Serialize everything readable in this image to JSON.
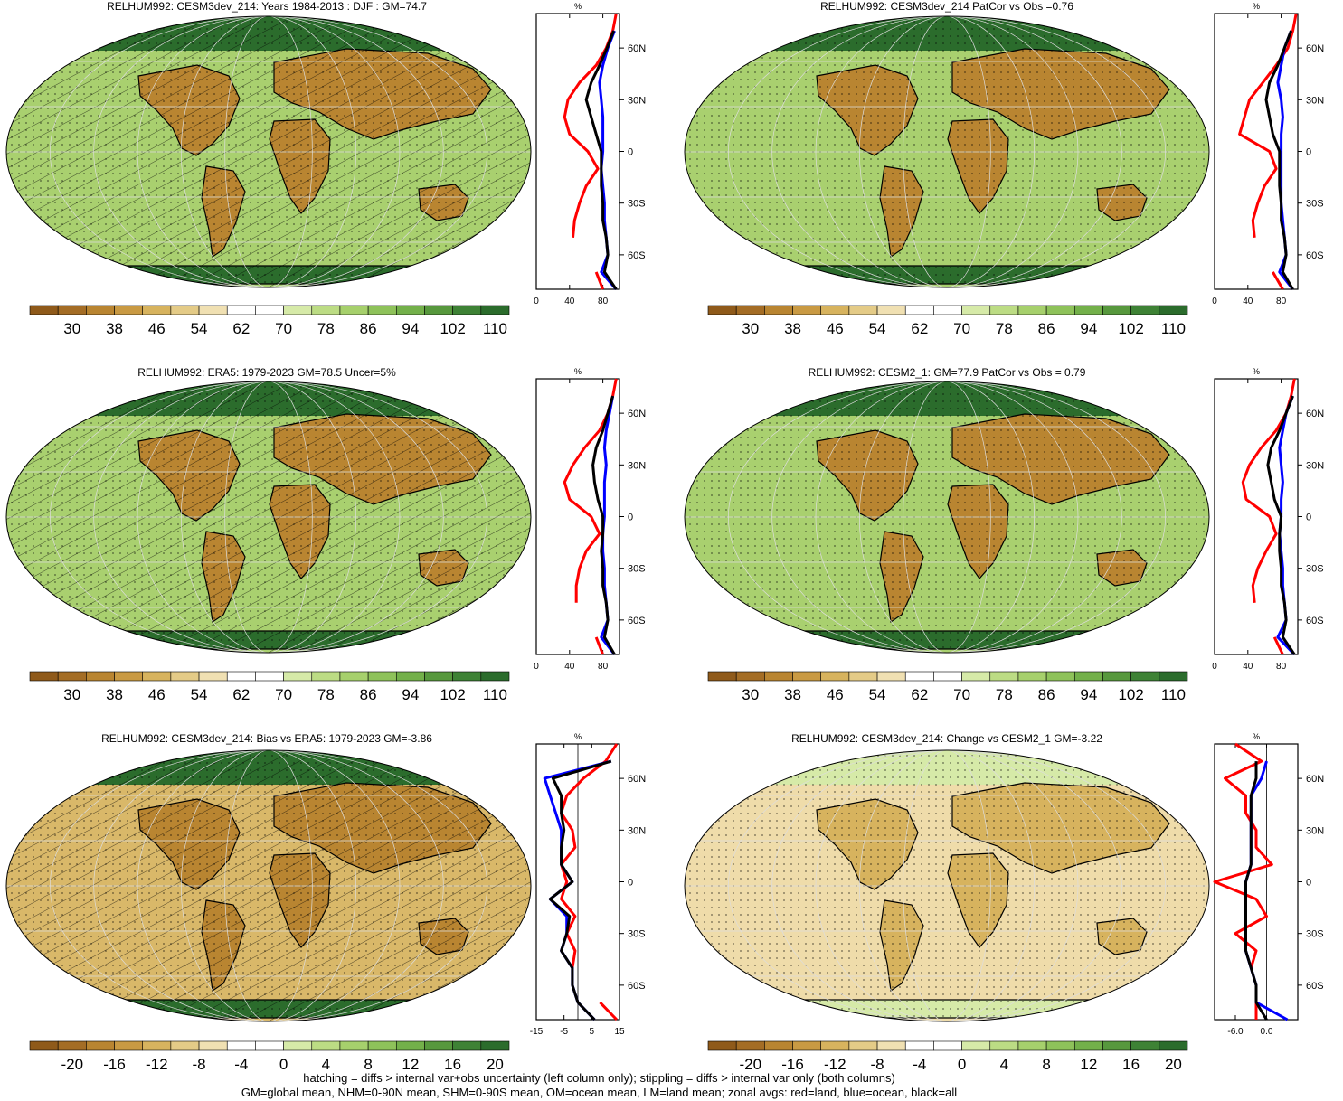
{
  "palette": {
    "abs": [
      "#8f5a1a",
      "#a46d25",
      "#b98531",
      "#c99a43",
      "#d7b35e",
      "#e4cb87",
      "#f0e0b2",
      "#ffffff",
      "#ffffff",
      "#d6eaa8",
      "#bcdc84",
      "#a6d06c",
      "#8ec25a",
      "#73b04a",
      "#57983d",
      "#3e8235",
      "#2b6c2c"
    ],
    "diff": [
      "#8f5a1a",
      "#a46d25",
      "#b98531",
      "#c99a43",
      "#d7b35e",
      "#e4cb87",
      "#f0e0b2",
      "#ffffff",
      "#ffffff",
      "#d6eaa8",
      "#bcdc84",
      "#a6d06c",
      "#8ec25a",
      "#73b04a",
      "#57983d",
      "#3e8235",
      "#2b6c2c"
    ],
    "land_line": "#ff0000",
    "ocean_line": "#0000ff",
    "all_line": "#000000",
    "missing": "#cccccc"
  },
  "chart_data": [
    {
      "type": "heatmap",
      "title": "RELHUM992: CESM3dev_214: Years 1984-2013 : DJF : GM=74.7",
      "colorbar": [
        "30",
        "38",
        "46",
        "54",
        "62",
        "70",
        "78",
        "86",
        "94",
        "102",
        "110"
      ],
      "hatching": true,
      "profile": {
        "unit": "%",
        "xticks": [
          "0",
          "40",
          "80"
        ],
        "xrange": [
          0,
          100
        ],
        "yticks": [
          "60N",
          "30N",
          "0",
          "30S",
          "60S"
        ],
        "lat": [
          80,
          70,
          60,
          50,
          40,
          30,
          20,
          10,
          0,
          -10,
          -20,
          -30,
          -40,
          -50,
          -60,
          -70,
          -80
        ],
        "land": [
          96,
          92,
          84,
          72,
          52,
          38,
          34,
          40,
          62,
          74,
          60,
          52,
          46,
          44,
          null,
          72,
          80
        ],
        "ocean": [
          null,
          94,
          86,
          80,
          76,
          78,
          80,
          80,
          80,
          78,
          80,
          82,
          82,
          84,
          86,
          78,
          96
        ],
        "all": [
          null,
          93,
          85,
          76,
          66,
          60,
          66,
          72,
          78,
          78,
          78,
          80,
          80,
          84,
          86,
          82,
          96
        ]
      }
    },
    {
      "type": "heatmap",
      "title": "RELHUM992: CESM3dev_214 PatCor vs Obs =0.76",
      "colorbar": [
        "30",
        "38",
        "46",
        "54",
        "62",
        "70",
        "78",
        "86",
        "94",
        "102",
        "110"
      ],
      "hatching": false,
      "profile": {
        "unit": "%",
        "xticks": [
          "0",
          "40",
          "80"
        ],
        "xrange": [
          0,
          100
        ],
        "yticks": [
          "60N",
          "30N",
          "0",
          "30S",
          "60S"
        ],
        "lat": [
          80,
          70,
          60,
          50,
          40,
          30,
          20,
          10,
          0,
          -10,
          -20,
          -30,
          -40,
          -50,
          -60,
          -70,
          -80
        ],
        "land": [
          98,
          94,
          88,
          74,
          58,
          42,
          36,
          30,
          66,
          74,
          60,
          52,
          46,
          48,
          null,
          70,
          82
        ],
        "ocean": [
          null,
          92,
          84,
          80,
          76,
          80,
          82,
          80,
          80,
          80,
          80,
          80,
          82,
          84,
          86,
          78,
          94
        ],
        "all": [
          null,
          92,
          84,
          76,
          66,
          62,
          66,
          70,
          78,
          78,
          78,
          80,
          80,
          84,
          86,
          82,
          94
        ]
      }
    },
    {
      "type": "heatmap",
      "title": "RELHUM992: ERA5: 1979-2023 GM=78.5 Uncer=5%",
      "colorbar": [
        "30",
        "38",
        "46",
        "54",
        "62",
        "70",
        "78",
        "86",
        "94",
        "102",
        "110"
      ],
      "hatching": true,
      "profile": {
        "unit": "%",
        "xticks": [
          "0",
          "40",
          "80"
        ],
        "xrange": [
          0,
          100
        ],
        "yticks": [
          "60N",
          "30N",
          "0",
          "30S",
          "60S"
        ],
        "lat": [
          80,
          70,
          60,
          50,
          40,
          30,
          20,
          10,
          0,
          -10,
          -20,
          -30,
          -40,
          -50,
          -60,
          -70,
          -80
        ],
        "land": [
          96,
          92,
          86,
          76,
          58,
          44,
          34,
          40,
          66,
          76,
          60,
          52,
          48,
          48,
          null,
          72,
          80
        ],
        "ocean": [
          null,
          92,
          88,
          84,
          82,
          84,
          82,
          82,
          82,
          80,
          80,
          82,
          82,
          84,
          86,
          78,
          94
        ],
        "all": [
          null,
          92,
          86,
          80,
          72,
          68,
          70,
          74,
          80,
          80,
          78,
          80,
          80,
          84,
          86,
          82,
          94
        ]
      }
    },
    {
      "type": "heatmap",
      "title": "RELHUM992: CESM2_1: GM=77.9 PatCor vs Obs = 0.79",
      "colorbar": [
        "30",
        "38",
        "46",
        "54",
        "62",
        "70",
        "78",
        "86",
        "94",
        "102",
        "110"
      ],
      "hatching": false,
      "profile": {
        "unit": "%",
        "xticks": [
          "0",
          "40",
          "80"
        ],
        "xrange": [
          0,
          100
        ],
        "yticks": [
          "60N",
          "30N",
          "0",
          "30S",
          "60S"
        ],
        "lat": [
          80,
          70,
          60,
          50,
          40,
          30,
          20,
          10,
          0,
          -10,
          -20,
          -30,
          -40,
          -50,
          -60,
          -70,
          -80
        ],
        "land": [
          96,
          92,
          86,
          74,
          56,
          42,
          34,
          38,
          66,
          74,
          62,
          52,
          46,
          48,
          null,
          72,
          82
        ],
        "ocean": [
          null,
          94,
          86,
          82,
          78,
          80,
          82,
          80,
          80,
          78,
          80,
          82,
          82,
          84,
          86,
          76,
          96
        ],
        "all": [
          null,
          94,
          86,
          78,
          68,
          64,
          68,
          72,
          80,
          78,
          78,
          80,
          80,
          84,
          86,
          82,
          96
        ]
      }
    },
    {
      "type": "heatmap",
      "title": "RELHUM992: CESM3dev_214: Bias vs ERA5: 1979-2023 GM=-3.86",
      "colorbar": [
        "-20",
        "-16",
        "-12",
        "-8",
        "-4",
        "0",
        "4",
        "8",
        "12",
        "16",
        "20"
      ],
      "hatching": true,
      "profile": {
        "unit": "%",
        "xticks": [
          "-15",
          "-5",
          "5",
          "15"
        ],
        "xrange": [
          -15,
          15
        ],
        "yticks": [
          "60N",
          "30N",
          "0",
          "30S",
          "60S"
        ],
        "lat": [
          80,
          70,
          60,
          50,
          40,
          30,
          20,
          10,
          0,
          -10,
          -20,
          -30,
          -40,
          -50,
          -60,
          -70,
          -80
        ],
        "land": [
          14,
          10,
          2,
          -4,
          -6,
          -2,
          -1,
          -6,
          -4,
          -6,
          -1,
          -4,
          -1,
          -2,
          null,
          8,
          14
        ],
        "ocean": [
          null,
          12,
          -12,
          -10,
          -8,
          -6,
          -6,
          -6,
          -2,
          -10,
          -4,
          -4,
          -6,
          -2,
          -2,
          0,
          6
        ],
        "all": [
          null,
          12,
          -9,
          -6,
          -6,
          -5,
          -6,
          -6,
          -2,
          -10,
          -3,
          -4,
          -6,
          -2,
          -2,
          0,
          6
        ]
      }
    },
    {
      "type": "heatmap",
      "title": "RELHUM992: CESM3dev_214: Change vs CESM2_1 GM=-3.22",
      "colorbar": [
        "-20",
        "-16",
        "-12",
        "-8",
        "-4",
        "0",
        "4",
        "8",
        "12",
        "16",
        "20"
      ],
      "hatching": false,
      "profile": {
        "unit": "%",
        "xticks": [
          "-6.0",
          "0.0"
        ],
        "xrange": [
          -10,
          6
        ],
        "yticks": [
          "60N",
          "30N",
          "0",
          "30S",
          "60S"
        ],
        "lat": [
          80,
          70,
          60,
          50,
          40,
          30,
          20,
          10,
          0,
          -10,
          -20,
          -30,
          -40,
          -50,
          -60,
          -70,
          -80
        ],
        "land": [
          -6,
          -1,
          -8,
          -4,
          -4,
          -2,
          -2,
          1,
          -10,
          -2,
          0,
          -6,
          -2,
          -3,
          null,
          -2,
          -2
        ],
        "ocean": [
          null,
          0,
          -1,
          -3,
          -3,
          -3,
          -3,
          -3,
          -4,
          -4,
          -4,
          -4,
          -4,
          -3,
          -2,
          -2,
          4
        ],
        "all": [
          null,
          -2,
          -2,
          -3,
          -3,
          -3,
          -3,
          -3,
          -4,
          -4,
          -4,
          -4,
          -4,
          -3,
          -2,
          -2,
          0
        ]
      }
    }
  ],
  "footer": {
    "line1": "hatching = diffs > internal var+obs uncertainty (left column only); stippling = diffs > internal var only (both columns)",
    "line2": "GM=global mean, NHM=0-90N mean, SHM=0-90S mean, OM=ocean mean, LM=land mean; zonal avgs: red=land, blue=ocean, black=all"
  }
}
